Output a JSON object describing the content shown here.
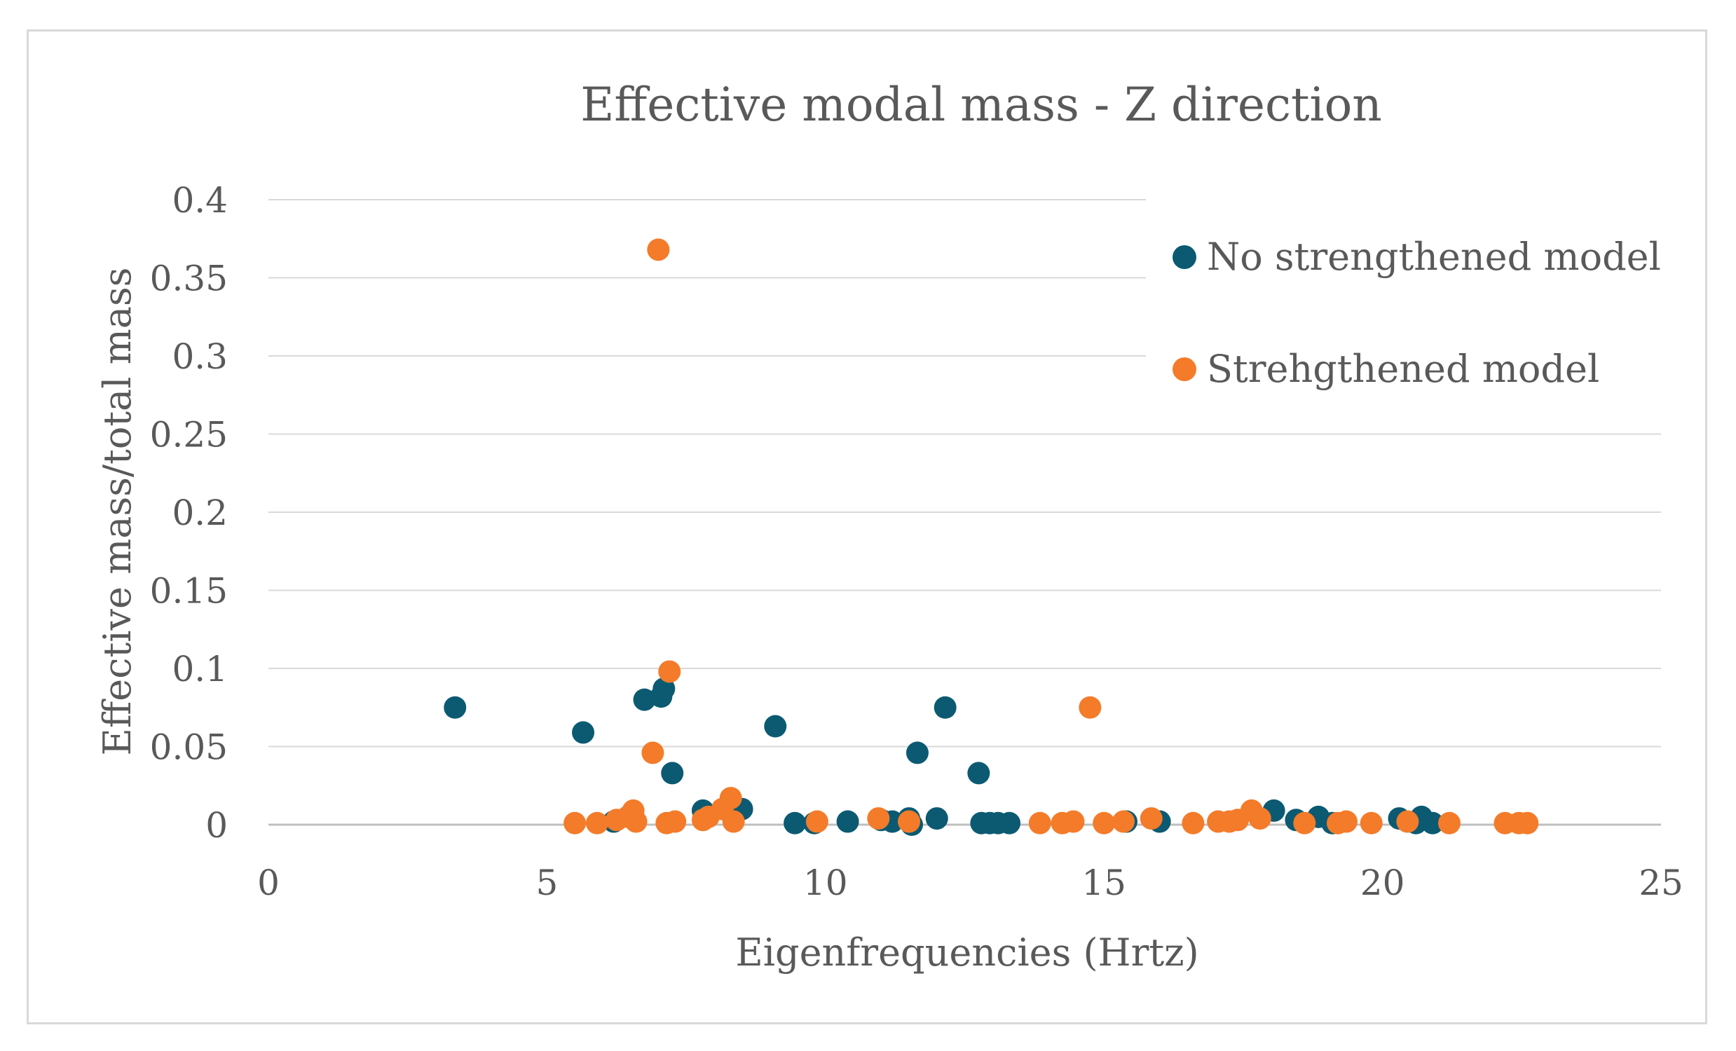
{
  "chart_data": {
    "type": "scatter",
    "title": "Effective modal mass - Z direction",
    "xlabel": "Eigenfrequencies (Hrtz)",
    "ylabel": "Effective mass/total mass",
    "xlim": [
      0,
      25
    ],
    "ylim": [
      0,
      0.4
    ],
    "x_ticks": [
      "0",
      "5",
      "10",
      "15",
      "20",
      "25"
    ],
    "y_ticks": [
      "0",
      "0.05",
      "0.1",
      "0.15",
      "0.2",
      "0.25",
      "0.3",
      "0.35",
      "0.4"
    ],
    "grid": "horizontal",
    "legend": "right",
    "series": [
      {
        "name": "No strengthened model",
        "color": "#0b5a72",
        "points": [
          [
            3.35,
            0.075
          ],
          [
            5.65,
            0.059
          ],
          [
            6.75,
            0.08
          ],
          [
            7.05,
            0.082
          ],
          [
            7.1,
            0.087
          ],
          [
            7.25,
            0.033
          ],
          [
            6.2,
            0.002
          ],
          [
            7.8,
            0.009
          ],
          [
            8.5,
            0.01
          ],
          [
            9.1,
            0.063
          ],
          [
            9.45,
            0.001
          ],
          [
            9.8,
            0.001
          ],
          [
            10.4,
            0.002
          ],
          [
            11.0,
            0.003
          ],
          [
            11.2,
            0.002
          ],
          [
            11.5,
            0.004
          ],
          [
            11.55,
            0.0
          ],
          [
            11.65,
            0.046
          ],
          [
            12.0,
            0.004
          ],
          [
            12.15,
            0.075
          ],
          [
            12.75,
            0.033
          ],
          [
            12.8,
            0.001
          ],
          [
            12.95,
            0.001
          ],
          [
            13.1,
            0.001
          ],
          [
            13.3,
            0.001
          ],
          [
            15.4,
            0.002
          ],
          [
            16.0,
            0.002
          ],
          [
            18.05,
            0.009
          ],
          [
            18.45,
            0.003
          ],
          [
            18.85,
            0.005
          ],
          [
            19.1,
            0.001
          ],
          [
            20.3,
            0.004
          ],
          [
            20.6,
            0.001
          ],
          [
            20.7,
            0.005
          ],
          [
            20.9,
            0.001
          ]
        ]
      },
      {
        "name": "Strehgthened model",
        "color": "#f47b2a",
        "points": [
          [
            7.0,
            0.368
          ],
          [
            7.2,
            0.098
          ],
          [
            6.9,
            0.046
          ],
          [
            5.5,
            0.001
          ],
          [
            5.9,
            0.001
          ],
          [
            6.25,
            0.003
          ],
          [
            6.45,
            0.005
          ],
          [
            6.55,
            0.009
          ],
          [
            6.6,
            0.002
          ],
          [
            7.15,
            0.001
          ],
          [
            7.3,
            0.002
          ],
          [
            7.8,
            0.003
          ],
          [
            7.9,
            0.005
          ],
          [
            8.15,
            0.01
          ],
          [
            8.3,
            0.017
          ],
          [
            8.35,
            0.002
          ],
          [
            9.85,
            0.002
          ],
          [
            10.95,
            0.004
          ],
          [
            11.5,
            0.002
          ],
          [
            13.85,
            0.001
          ],
          [
            14.25,
            0.001
          ],
          [
            14.45,
            0.002
          ],
          [
            14.75,
            0.075
          ],
          [
            15.0,
            0.001
          ],
          [
            15.35,
            0.002
          ],
          [
            15.85,
            0.004
          ],
          [
            16.6,
            0.001
          ],
          [
            17.05,
            0.002
          ],
          [
            17.25,
            0.002
          ],
          [
            17.4,
            0.003
          ],
          [
            17.65,
            0.009
          ],
          [
            17.8,
            0.004
          ],
          [
            18.6,
            0.001
          ],
          [
            19.2,
            0.001
          ],
          [
            19.35,
            0.002
          ],
          [
            19.8,
            0.001
          ],
          [
            20.45,
            0.002
          ],
          [
            21.2,
            0.001
          ],
          [
            22.2,
            0.001
          ],
          [
            22.45,
            0.001
          ],
          [
            22.6,
            0.001
          ]
        ]
      }
    ]
  }
}
